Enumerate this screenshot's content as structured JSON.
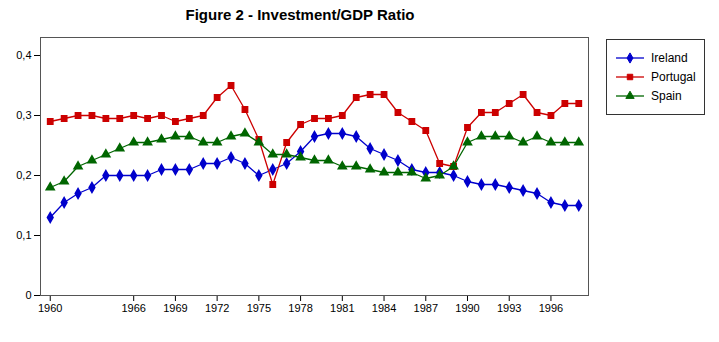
{
  "chart_data": {
    "type": "line",
    "title": "Figure 2 - Investment/GDP Ratio",
    "x": [
      1960,
      1961,
      1962,
      1963,
      1964,
      1965,
      1966,
      1967,
      1968,
      1969,
      1970,
      1971,
      1972,
      1973,
      1974,
      1975,
      1976,
      1977,
      1978,
      1979,
      1980,
      1981,
      1982,
      1983,
      1984,
      1985,
      1986,
      1987,
      1988,
      1989,
      1990,
      1991,
      1992,
      1993,
      1994,
      1995,
      1996,
      1997,
      1998
    ],
    "series": [
      {
        "name": "Ireland",
        "color": "#0000CC",
        "marker": "diamond",
        "values": [
          0.13,
          0.155,
          0.17,
          0.18,
          0.2,
          0.2,
          0.2,
          0.2,
          0.21,
          0.21,
          0.21,
          0.22,
          0.22,
          0.23,
          0.22,
          0.2,
          0.21,
          0.22,
          0.24,
          0.265,
          0.27,
          0.27,
          0.265,
          0.245,
          0.235,
          0.225,
          0.21,
          0.205,
          0.205,
          0.2,
          0.19,
          0.185,
          0.185,
          0.18,
          0.175,
          0.17,
          0.155,
          0.15,
          0.15
        ]
      },
      {
        "name": "Portugal",
        "color": "#CC0000",
        "marker": "square",
        "values": [
          0.29,
          0.295,
          0.3,
          0.3,
          0.295,
          0.295,
          0.3,
          0.295,
          0.3,
          0.29,
          0.295,
          0.3,
          0.33,
          0.35,
          0.31,
          0.26,
          0.185,
          0.255,
          0.285,
          0.295,
          0.295,
          0.3,
          0.33,
          0.335,
          0.335,
          0.305,
          0.29,
          0.275,
          0.22,
          0.215,
          0.28,
          0.305,
          0.305,
          0.32,
          0.335,
          0.305,
          0.3,
          0.32,
          0.32
        ]
      },
      {
        "name": "Spain",
        "color": "#006600",
        "marker": "triangle",
        "values": [
          0.18,
          0.19,
          0.215,
          0.225,
          0.235,
          0.245,
          0.255,
          0.255,
          0.26,
          0.265,
          0.265,
          0.255,
          0.255,
          0.265,
          0.27,
          0.255,
          0.235,
          0.235,
          0.23,
          0.225,
          0.225,
          0.215,
          0.215,
          0.21,
          0.205,
          0.205,
          0.205,
          0.195,
          0.2,
          0.215,
          0.255,
          0.265,
          0.265,
          0.265,
          0.255,
          0.265,
          0.255,
          0.255,
          0.255
        ]
      }
    ],
    "xlim": [
      1959.3,
      1998.7
    ],
    "xticks": [
      1960,
      1966,
      1969,
      1972,
      1975,
      1978,
      1981,
      1984,
      1987,
      1990,
      1993,
      1996
    ],
    "ylim": [
      0,
      0.43
    ],
    "yticks": [
      0,
      {
        "value": 0.1,
        "label": "0,1"
      },
      {
        "value": 0.2,
        "label": "0,2"
      },
      {
        "value": 0.3,
        "label": "0,3"
      },
      {
        "value": 0.4,
        "label": "0,4"
      }
    ],
    "grid": false,
    "legend": "right"
  }
}
